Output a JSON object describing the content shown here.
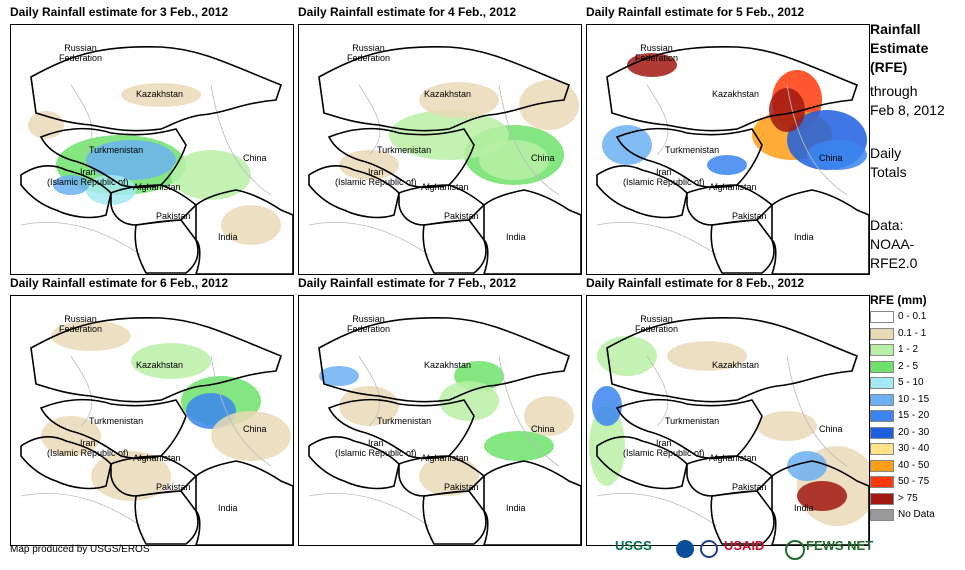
{
  "panels": [
    {
      "title": "Daily Rainfall estimate for 3 Feb., 2012"
    },
    {
      "title": "Daily Rainfall estimate for 4 Feb., 2012"
    },
    {
      "title": "Daily Rainfall estimate for 5 Feb., 2012"
    },
    {
      "title": "Daily Rainfall estimate for 6 Feb., 2012"
    },
    {
      "title": "Daily Rainfall estimate for 7 Feb., 2012"
    },
    {
      "title": "Daily Rainfall estimate for 8 Feb., 2012"
    }
  ],
  "map_labels": {
    "russia": "Russian\nFederation",
    "kazakhstan": "Kazakhstan",
    "turkmenistan": "Turkmenistan",
    "iran": "Iran\n(Islamic Republic of)",
    "afghanistan": "Afghanistan",
    "pakistan": "Pakistan",
    "india": "India",
    "china": "China"
  },
  "sidebar": {
    "title": "Rainfall\nEstimate\n(RFE)",
    "through": "through\nFeb 8, 2012",
    "totals": "Daily\nTotals",
    "source": "Data:\nNOAA-\nRFE2.0"
  },
  "legend": {
    "title": "RFE (mm)",
    "items": [
      {
        "label": "0 - 0.1",
        "color": "#ffffff"
      },
      {
        "label": "0.1 - 1",
        "color": "#ead9b6"
      },
      {
        "label": "1 - 2",
        "color": "#b8f0a6"
      },
      {
        "label": "2 - 5",
        "color": "#6ee26a"
      },
      {
        "label": "5 - 10",
        "color": "#a4eaf3"
      },
      {
        "label": "10 - 15",
        "color": "#6cb0f2"
      },
      {
        "label": "15 - 20",
        "color": "#3b85ef"
      },
      {
        "label": "20 - 30",
        "color": "#1e5fe0"
      },
      {
        "label": "30 - 40",
        "color": "#ffe38a"
      },
      {
        "label": "40 - 50",
        "color": "#ff9d16"
      },
      {
        "label": "50 - 75",
        "color": "#ff3a0a"
      },
      {
        "label": "> 75",
        "color": "#a21812"
      },
      {
        "label": "No Data",
        "color": "#9a9a9a"
      }
    ]
  },
  "footer": {
    "credit": "Map produced by USGS/EROS",
    "logos": [
      "USGS",
      "NOAA",
      "USAID",
      "FEWS NET"
    ]
  }
}
